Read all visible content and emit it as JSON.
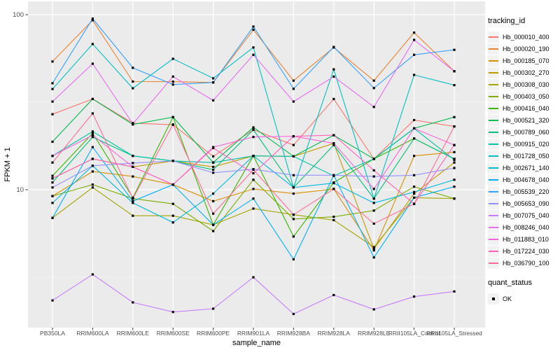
{
  "chart_data": {
    "type": "line",
    "title": "",
    "xlabel": "sample_name",
    "ylabel": "FPKM + 1",
    "y_scale": "log10",
    "ylim": [
      1.6,
      119
    ],
    "y_major_ticks": [
      10,
      100
    ],
    "y_minor_gridlines": [
      3.1623,
      31.6228
    ],
    "grid": true,
    "legend_position": "right",
    "point_marker": "filled-square",
    "categories": [
      "PB350LA",
      "RRIM600LA",
      "RRIM600LE",
      "RRIM600SE",
      "RRIM600PE",
      "RRIM901LA",
      "RRIM928BA",
      "RRIM928LA",
      "RRIM928LE",
      "RRII105LA_Control",
      "RRII105LA_Stressed"
    ],
    "series": [
      {
        "name": "Hb_000010_400",
        "color": "#F8766D",
        "values": [
          27,
          33,
          24,
          23.5,
          15.5,
          22,
          18,
          33,
          15,
          25,
          23
        ]
      },
      {
        "name": "Hb_000020_190",
        "color": "#EA8331",
        "values": [
          54,
          93,
          41.5,
          41.4,
          41,
          82,
          42,
          65,
          42,
          79,
          47.5
        ]
      },
      {
        "name": "Hb_000185_070",
        "color": "#D89000",
        "values": [
          9.2,
          12.7,
          11.9,
          10.7,
          8.6,
          10.1,
          9.5,
          10.1,
          4.5,
          15.6,
          16.4
        ]
      },
      {
        "name": "Hb_000302_270",
        "color": "#C09B00",
        "values": [
          11.6,
          15,
          13.5,
          14.6,
          13.5,
          15.6,
          15.5,
          18.4,
          4.6,
          9.5,
          14.3
        ]
      },
      {
        "name": "Hb_000308_030",
        "color": "#A3A500",
        "values": [
          6.9,
          10.3,
          7.1,
          7.1,
          6.3,
          7.8,
          7.2,
          6.7,
          4.7,
          9,
          8.9
        ]
      },
      {
        "name": "Hb_000403_050",
        "color": "#7CAE00",
        "values": [
          9.2,
          10.7,
          8.9,
          8.3,
          5.8,
          11.4,
          6.8,
          7,
          7.6,
          10.4,
          8.9
        ]
      },
      {
        "name": "Hb_000416_040",
        "color": "#39B600",
        "values": [
          12,
          21,
          9,
          26,
          6.3,
          15.6,
          5.4,
          11,
          15,
          19.6,
          15
        ]
      },
      {
        "name": "Hb_000521_320",
        "color": "#00BB4E",
        "values": [
          18.8,
          33,
          23.6,
          26,
          14.3,
          22.7,
          15.5,
          20.5,
          15,
          22.4,
          26
        ]
      },
      {
        "name": "Hb_000789_060",
        "color": "#00BF7D",
        "values": [
          11,
          20,
          15.6,
          14.6,
          13,
          22,
          10.3,
          18,
          8.9,
          19.6,
          15
        ]
      },
      {
        "name": "Hb_000915_020",
        "color": "#00C1A3",
        "values": [
          15.6,
          21.5,
          15.6,
          14.6,
          14.3,
          15.6,
          15.5,
          12,
          15,
          22.4,
          14.8
        ]
      },
      {
        "name": "Hb_001728_050",
        "color": "#00BFC4",
        "values": [
          37.6,
          68,
          38,
          56,
          43.3,
          65,
          10.3,
          48.7,
          8.9,
          45.3,
          39.6
        ]
      },
      {
        "name": "Hb_002671_140",
        "color": "#00BAE0",
        "values": [
          8.4,
          13.7,
          8.4,
          6.5,
          9.5,
          15.6,
          10.3,
          10.9,
          8.4,
          9.7,
          11.4
        ]
      },
      {
        "name": "Hb_004678_040",
        "color": "#00B0F6",
        "values": [
          6.9,
          17.5,
          8.6,
          10.7,
          6.3,
          8.9,
          4,
          12.1,
          4.1,
          9,
          10.4
        ]
      },
      {
        "name": "Hb_005539_220",
        "color": "#35A2FF",
        "values": [
          40.6,
          95,
          49.7,
          39.9,
          41,
          85.5,
          37.7,
          65.4,
          38.1,
          59,
          63
        ]
      },
      {
        "name": "Hb_005653_090",
        "color": "#9590FF",
        "values": [
          10.3,
          13.7,
          14.2,
          14.6,
          12.5,
          13.1,
          12.1,
          12.1,
          11.9,
          12.1,
          13.3
        ]
      },
      {
        "name": "Hb_007075_040",
        "color": "#C77CFF",
        "values": [
          2.33,
          3.28,
          2.27,
          2,
          2.09,
          3.16,
          1.95,
          2.5,
          2.07,
          2.45,
          2.62
        ]
      },
      {
        "name": "Hb_008246_040",
        "color": "#E76BF3",
        "values": [
          31.9,
          52.5,
          23.8,
          44.3,
          32.4,
          59,
          31.9,
          44.3,
          29.7,
          71.8,
          47.5
        ]
      },
      {
        "name": "Hb_011883_010",
        "color": "#FA62DB",
        "values": [
          15.6,
          20.5,
          13.5,
          10.7,
          17.5,
          20,
          20.2,
          18.4,
          10.1,
          22.4,
          18
        ]
      },
      {
        "name": "Hb_017224_030",
        "color": "#FF62BC",
        "values": [
          11.6,
          15,
          13.5,
          10.7,
          17.3,
          12.4,
          20.2,
          20.5,
          12.9,
          8.3,
          18
        ]
      },
      {
        "name": "Hb_036790_100",
        "color": "#FF6A98",
        "values": [
          14.3,
          27.3,
          8.9,
          23.6,
          7.3,
          13,
          7.2,
          10.1,
          6.4,
          8.3,
          23
        ]
      }
    ],
    "quant_status": {
      "label": "OK"
    }
  },
  "legend": {
    "tracking_title": "tracking_id",
    "quant_title": "quant_status",
    "quant_ok_label": "OK"
  },
  "style": {
    "panel_bg": "#EBEBEB",
    "grid_color": "#FFFFFF",
    "tick_color": "#333333",
    "tick_label_color": "#4D4D4D",
    "point_color": "#000000"
  }
}
